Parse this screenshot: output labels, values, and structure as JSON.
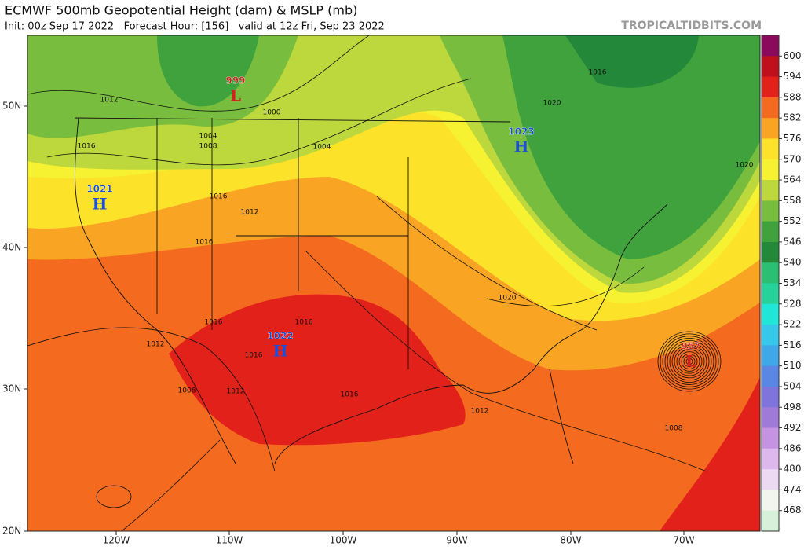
{
  "header": {
    "title": "ECMWF 500mb Geopotential Height (dam) & MSLP (mb)",
    "subtitle": "Init: 00z Sep 17 2022   Forecast Hour: [156]   valid at 12z Fri, Sep 23 2022",
    "source": "TROPICALTIDBITS.COM"
  },
  "colorbar": {
    "ticks": [
      600,
      594,
      588,
      582,
      576,
      570,
      564,
      558,
      552,
      546,
      540,
      534,
      528,
      522,
      516,
      510,
      504,
      498,
      492,
      486,
      480,
      474,
      468
    ],
    "colors": [
      "#8a0a5c",
      "#c0101e",
      "#e3211b",
      "#f46a1e",
      "#f9a422",
      "#fde22a",
      "#f6f231",
      "#bcd83c",
      "#78bd3e",
      "#3fa23c",
      "#24883a",
      "#2bbf73",
      "#27d19a",
      "#1fe6d6",
      "#35c8ea",
      "#3fa8e8",
      "#5a86e4",
      "#7f74dc",
      "#a07ad8",
      "#c494e2",
      "#dcb8ec",
      "#ecdaf2",
      "#f2f4ee",
      "#d6f0da"
    ]
  },
  "map": {
    "latitude_labels": [
      "50N",
      "40N",
      "30N",
      "20N"
    ],
    "longitude_labels": [
      "120W",
      "110W",
      "100W",
      "90W",
      "80W",
      "70W"
    ],
    "pressure_centers": [
      {
        "value": 999,
        "type": "L"
      },
      {
        "value": 1021,
        "type": "H"
      },
      {
        "value": 1022,
        "type": "H"
      },
      {
        "value": 1023,
        "type": "H"
      },
      {
        "value": 957,
        "type": "L"
      }
    ],
    "isobar_labels": [
      1012,
      1000,
      1004,
      1008,
      1004,
      1016,
      1016,
      1012,
      1016,
      1016,
      1012,
      1016,
      1016,
      1008,
      1012,
      1016,
      1012,
      1020,
      1020,
      1016,
      1008,
      1020
    ]
  }
}
